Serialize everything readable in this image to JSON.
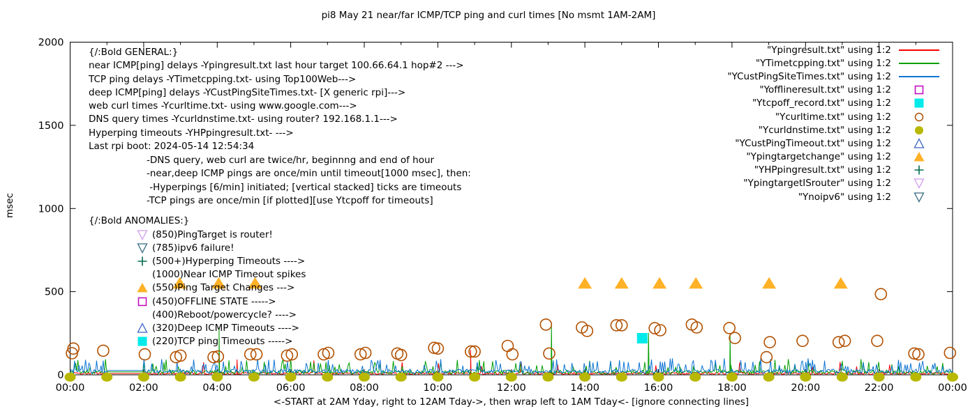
{
  "chart_data": {
    "type": "line+scatter",
    "title": "pi8 May 21  near/far ICMP/TCP ping and curl times [No msmt 1AM-2AM]",
    "xlabel": "<-START at 2AM Yday, right to 12AM Tday->, then wrap left to 1AM Tday<- [ignore connecting lines]",
    "ylabel": "msec",
    "xlim_hours": [
      0,
      24
    ],
    "ylim": [
      0,
      2000
    ],
    "x_tick_hours": [
      0,
      2,
      4,
      6,
      8,
      10,
      12,
      14,
      16,
      18,
      20,
      22,
      24
    ],
    "x_tick_labels": [
      "00:00",
      "02:00",
      "04:00",
      "06:00",
      "08:00",
      "10:00",
      "12:00",
      "14:00",
      "16:00",
      "18:00",
      "20:00",
      "22:00",
      "00:00"
    ],
    "y_ticks": [
      0,
      500,
      1000,
      1500,
      2000
    ],
    "grid": false,
    "legend_position": "top-right",
    "colors": {
      "red": "#ff0000",
      "green": "#009e00",
      "blue": "#0d74d1",
      "magenta": "#c000c0",
      "cyan": "#00eaea",
      "brown": "#b25000",
      "olive": "#b8b800",
      "blue2": "#3a62c8",
      "orange": "#ffb127",
      "darkgreen": "#006a4e",
      "violet": "#cf9bee",
      "teal": "#34687e",
      "axis": "#000000"
    },
    "series": [
      {
        "key": "near_icmp",
        "legend_label": "\"Ypingresult.txt\" using 1:2",
        "style": "line",
        "color": "red",
        "noise": {
          "seed": 101,
          "base": 2,
          "amp": 13,
          "spike_prob": 0.018,
          "spike_min": 40,
          "spike_max": 90
        },
        "flat": [
          1,
          2,
          8
        ],
        "spikes": [
          [
            4.54,
            92
          ],
          [
            10.89,
            150
          ]
        ]
      },
      {
        "key": "tcp_ping",
        "legend_label": "\"YTimetcpping.txt\" using 1:2",
        "style": "line",
        "color": "green",
        "noise": {
          "seed": 202,
          "base": 4,
          "amp": 24,
          "spike_prob": 0.09,
          "spike_min": 40,
          "spike_max": 95
        },
        "flat": [
          1,
          2,
          18
        ],
        "spikes": [
          [
            4.05,
            285
          ],
          [
            13.09,
            300
          ],
          [
            15.73,
            252
          ],
          [
            17.95,
            235
          ]
        ]
      },
      {
        "key": "deep_icmp",
        "legend_label": "\"YCustPingSiteTimes.txt\" using 1:2",
        "style": "line",
        "color": "blue",
        "noise": {
          "seed": 303,
          "base": 8,
          "amp": 26,
          "spike_prob": 0.14,
          "spike_min": 50,
          "spike_max": 100
        },
        "flat": [
          1,
          2,
          26
        ],
        "spikes": []
      },
      {
        "key": "offline",
        "legend_label": "\"Yofflineresult.txt\" using 1:2",
        "style": "square-open",
        "color": "magenta",
        "points": []
      },
      {
        "key": "tcp_off",
        "legend_label": "\"Ytcpoff_record.txt\" using 1:2",
        "style": "square-filled",
        "color": "cyan",
        "points": [
          [
            15.56,
            220
          ]
        ]
      },
      {
        "key": "curl_time",
        "legend_label": "\"Ycurltime.txt\" using 1:2",
        "style": "circle-open",
        "color": "brown",
        "points": [
          [
            0.05,
            130
          ],
          [
            0.09,
            158
          ],
          [
            0.9,
            145
          ],
          [
            2.03,
            123
          ],
          [
            2.88,
            106
          ],
          [
            3.0,
            115
          ],
          [
            3.9,
            106
          ],
          [
            4.02,
            110
          ],
          [
            4.9,
            123
          ],
          [
            5.07,
            123
          ],
          [
            5.9,
            115
          ],
          [
            6.03,
            123
          ],
          [
            6.9,
            123
          ],
          [
            7.02,
            132
          ],
          [
            7.9,
            123
          ],
          [
            8.03,
            132
          ],
          [
            8.9,
            128
          ],
          [
            9.0,
            119
          ],
          [
            9.9,
            162
          ],
          [
            10.0,
            158
          ],
          [
            10.9,
            140
          ],
          [
            11.0,
            140
          ],
          [
            11.9,
            174
          ],
          [
            12.03,
            123
          ],
          [
            12.94,
            302
          ],
          [
            13.03,
            128
          ],
          [
            13.92,
            285
          ],
          [
            14.06,
            264
          ],
          [
            14.86,
            298
          ],
          [
            15.0,
            298
          ],
          [
            15.9,
            280
          ],
          [
            16.05,
            268
          ],
          [
            16.91,
            302
          ],
          [
            17.04,
            285
          ],
          [
            17.93,
            281
          ],
          [
            18.08,
            221
          ],
          [
            18.94,
            106
          ],
          [
            19.03,
            196
          ],
          [
            19.92,
            204
          ],
          [
            20.9,
            196
          ],
          [
            21.07,
            204
          ],
          [
            21.95,
            204
          ],
          [
            22.05,
            485
          ],
          [
            22.96,
            128
          ],
          [
            23.07,
            123
          ],
          [
            23.93,
            132
          ]
        ]
      },
      {
        "key": "dns_time",
        "legend_label": "\"Ycurldnstime.txt\" using 1:2",
        "style": "circle-filled",
        "color": "olive",
        "points": [
          [
            0,
            3
          ],
          [
            1,
            3
          ],
          [
            2,
            3
          ],
          [
            3,
            3
          ],
          [
            4,
            3
          ],
          [
            5,
            3
          ],
          [
            6,
            3
          ],
          [
            7,
            3
          ],
          [
            8,
            3
          ],
          [
            9,
            3
          ],
          [
            10,
            3
          ],
          [
            11,
            3
          ],
          [
            12,
            3
          ],
          [
            13,
            3
          ],
          [
            14,
            3
          ],
          [
            15,
            3
          ],
          [
            16,
            3
          ],
          [
            17,
            3
          ],
          [
            18,
            3
          ],
          [
            19,
            3
          ],
          [
            20,
            3
          ],
          [
            21,
            3
          ],
          [
            22,
            3
          ],
          [
            23,
            3
          ],
          [
            24,
            3
          ]
        ]
      },
      {
        "key": "cust_ping_timeout",
        "legend_label": "\"YCustPingTimeout.txt\" using 1:2",
        "style": "tri-up-open",
        "color": "blue2",
        "points": []
      },
      {
        "key": "ping_target_change",
        "legend_label": "\"Ypingtargetchange\" using 1:2",
        "style": "tri-up-filled",
        "color": "orange",
        "points": [
          [
            2.98,
            550
          ],
          [
            4.04,
            550
          ],
          [
            5.03,
            550
          ],
          [
            14.0,
            550
          ],
          [
            15.0,
            550
          ],
          [
            16.03,
            550
          ],
          [
            17.02,
            550
          ],
          [
            19.01,
            550
          ],
          [
            20.96,
            550
          ]
        ]
      },
      {
        "key": "hyperping",
        "legend_label": "\"YHPpingresult.txt\" using 1:2",
        "style": "plus",
        "color": "darkgreen",
        "points": []
      },
      {
        "key": "pingtarget_is_router",
        "legend_label": "\"YpingtargetISrouter\" using 1:2",
        "style": "tri-down-open",
        "color": "violet",
        "points": []
      },
      {
        "key": "noipv6",
        "legend_label": "\"Ynoipv6\" using 1:2",
        "style": "tri-down-open",
        "color": "teal",
        "points": []
      }
    ]
  },
  "annotations": {
    "general": {
      "lines": [
        "{/:Bold GENERAL:}",
        "near ICMP[ping] delays -Ypingresult.txt last hour target 100.66.64.1 hop#2 --->",
        "TCP ping delays -YTimetcpping.txt- using Top100Web--->",
        "deep ICMP[ping] delays -YCustPingSiteTimes.txt- [X generic rpi]--->",
        "web curl times -Ycurltime.txt- using www.google.com--->",
        "DNS query times -Ycurldnstime.txt- using router? 192.168.1.1--->",
        "Hyperping timeouts -YHPpingresult.txt- --->",
        "Last rpi boot: 2024-05-14 12:54:34"
      ],
      "notes": [
        "-DNS query, web curl are twice/hr, beginnng and end of hour",
        "-near,deep ICMP pings are once/min until timeout[1000 msec], then:",
        " -Hyperpings [6/min] initiated; [vertical stacked] ticks are timeouts",
        "-TCP pings are once/min [if plotted][use Ytcpoff for timeouts]"
      ]
    },
    "anomalies": {
      "heading": "{/:Bold ANOMALIES:}",
      "lines": [
        {
          "marker": "tri-down-open",
          "color": "violet",
          "text": "(850)PingTarget is router!"
        },
        {
          "marker": "tri-down-open",
          "color": "teal",
          "text": "(785)ipv6 failure!"
        },
        {
          "marker": "plus",
          "color": "darkgreen",
          "text": "(500+)Hyperping Timeouts ---->"
        },
        {
          "marker": "none",
          "color": "",
          "text": "(1000)Near ICMP Timeout spikes"
        },
        {
          "marker": "tri-up-filled",
          "color": "orange",
          "text": "(550)Ping Target Changes --->"
        },
        {
          "marker": "square-open",
          "color": "magenta",
          "text": "(450)OFFLINE STATE ----->"
        },
        {
          "marker": "none",
          "color": "",
          "text": "(400)Reboot/powercycle? ---->"
        },
        {
          "marker": "tri-up-open",
          "color": "blue2",
          "text": "(320)Deep ICMP Timeouts ---->"
        },
        {
          "marker": "square-filled",
          "color": "cyan",
          "text": "(220)TCP ping Timeouts ----->"
        }
      ]
    }
  }
}
